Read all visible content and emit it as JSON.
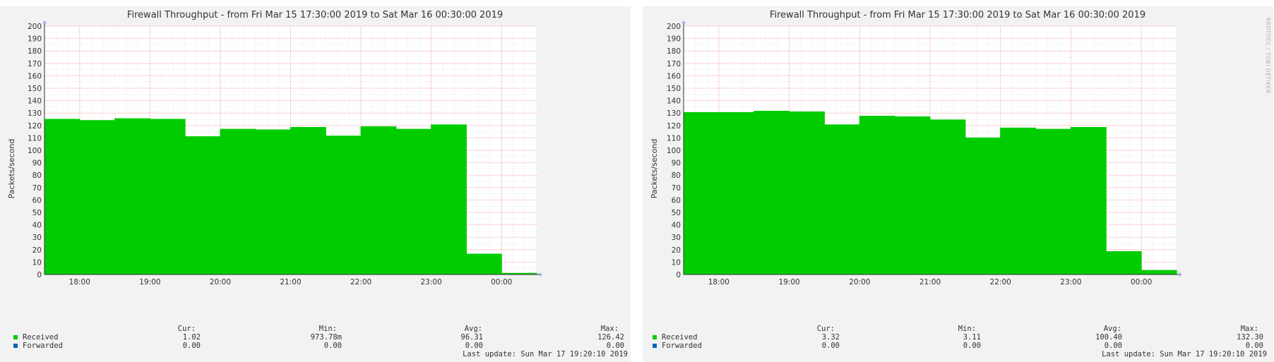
{
  "colors": {
    "received": "#00cc00",
    "forwarded": "#0066b3",
    "grid_major": "#f4a6a6",
    "grid_minor": "#e6e6e6",
    "background": "#f2f2f2",
    "plot_bg": "#ffffff"
  },
  "watermark": "RRDTOOL / TOBI OETIKER",
  "chart_data": [
    {
      "type": "area",
      "title": "Firewall Throughput - from Fri Mar 15 17:30:00 2019 to Sat Mar 16 00:30:00 2019",
      "ylabel": "Packets/second",
      "ylim": [
        0,
        200
      ],
      "yticks": [
        0,
        10,
        20,
        30,
        40,
        50,
        60,
        70,
        80,
        90,
        100,
        110,
        120,
        130,
        140,
        150,
        160,
        170,
        180,
        190,
        200
      ],
      "xlim": [
        17.5,
        24.5
      ],
      "xticks": [
        {
          "t": 18,
          "label": "18:00"
        },
        {
          "t": 19,
          "label": "19:00"
        },
        {
          "t": 20,
          "label": "20:00"
        },
        {
          "t": 21,
          "label": "21:00"
        },
        {
          "t": 22,
          "label": "22:00"
        },
        {
          "t": 23,
          "label": "23:00"
        },
        {
          "t": 24,
          "label": "00:00"
        }
      ],
      "grid": true,
      "series": [
        {
          "name": "Received",
          "steps": [
            {
              "start": 17.5,
              "end": 18.0,
              "value": 125
            },
            {
              "start": 18.0,
              "end": 18.5,
              "value": 124
            },
            {
              "start": 18.5,
              "end": 19.0,
              "value": 125.5
            },
            {
              "start": 19.0,
              "end": 19.5,
              "value": 125
            },
            {
              "start": 19.5,
              "end": 20.0,
              "value": 111
            },
            {
              "start": 20.0,
              "end": 20.5,
              "value": 117
            },
            {
              "start": 20.5,
              "end": 21.0,
              "value": 116.5
            },
            {
              "start": 21.0,
              "end": 21.5,
              "value": 118.5
            },
            {
              "start": 21.5,
              "end": 22.0,
              "value": 111.5
            },
            {
              "start": 22.0,
              "end": 22.5,
              "value": 119
            },
            {
              "start": 22.5,
              "end": 23.0,
              "value": 117
            },
            {
              "start": 23.0,
              "end": 23.5,
              "value": 120.5
            },
            {
              "start": 23.5,
              "end": 24.0,
              "value": 16.5
            },
            {
              "start": 24.0,
              "end": 24.5,
              "value": 1.02
            }
          ],
          "cur": "1.02",
          "min": "973.78m",
          "avg": "96.31",
          "max": "126.42"
        },
        {
          "name": "Forwarded",
          "steps": [],
          "cur": "0.00",
          "min": "0.00",
          "avg": "0.00",
          "max": "0.00"
        }
      ],
      "legend_headers": {
        "cur": "Cur:",
        "min": "Min:",
        "avg": "Avg:",
        "max": "Max:"
      },
      "last_update": "Last update:  Sun Mar 17 19:20:10 2019"
    },
    {
      "type": "area",
      "title": "Firewall Throughput - from Fri Mar 15 17:30:00 2019 to Sat Mar 16 00:30:00 2019",
      "ylabel": "Packets/second",
      "ylim": [
        0,
        200
      ],
      "yticks": [
        0,
        10,
        20,
        30,
        40,
        50,
        60,
        70,
        80,
        90,
        100,
        110,
        120,
        130,
        140,
        150,
        160,
        170,
        180,
        190,
        200
      ],
      "xlim": [
        17.5,
        24.5
      ],
      "xticks": [
        {
          "t": 18,
          "label": "18:00"
        },
        {
          "t": 19,
          "label": "19:00"
        },
        {
          "t": 20,
          "label": "20:00"
        },
        {
          "t": 21,
          "label": "21:00"
        },
        {
          "t": 22,
          "label": "22:00"
        },
        {
          "t": 23,
          "label": "23:00"
        },
        {
          "t": 24,
          "label": "00:00"
        }
      ],
      "grid": true,
      "series": [
        {
          "name": "Received",
          "steps": [
            {
              "start": 17.5,
              "end": 18.0,
              "value": 130.5
            },
            {
              "start": 18.0,
              "end": 18.5,
              "value": 130.5
            },
            {
              "start": 18.5,
              "end": 19.0,
              "value": 131.5
            },
            {
              "start": 19.0,
              "end": 19.5,
              "value": 131
            },
            {
              "start": 19.5,
              "end": 20.0,
              "value": 120.5
            },
            {
              "start": 20.0,
              "end": 20.5,
              "value": 127.5
            },
            {
              "start": 20.5,
              "end": 21.0,
              "value": 127
            },
            {
              "start": 21.0,
              "end": 21.5,
              "value": 124.5
            },
            {
              "start": 21.5,
              "end": 22.0,
              "value": 110
            },
            {
              "start": 22.0,
              "end": 22.5,
              "value": 118
            },
            {
              "start": 22.5,
              "end": 23.0,
              "value": 117
            },
            {
              "start": 23.0,
              "end": 23.5,
              "value": 118.5
            },
            {
              "start": 23.5,
              "end": 24.0,
              "value": 18.5
            },
            {
              "start": 24.0,
              "end": 24.5,
              "value": 3.32
            }
          ],
          "cur": "3.32",
          "min": "3.11",
          "avg": "100.40",
          "max": "132.30"
        },
        {
          "name": "Forwarded",
          "steps": [],
          "cur": "0.00",
          "min": "0.00",
          "avg": "0.00",
          "max": "0.00"
        }
      ],
      "legend_headers": {
        "cur": "Cur:",
        "min": "Min:",
        "avg": "Avg:",
        "max": "Max:"
      },
      "last_update": "Last update:  Sun Mar 17 19:20:10 2019"
    }
  ]
}
